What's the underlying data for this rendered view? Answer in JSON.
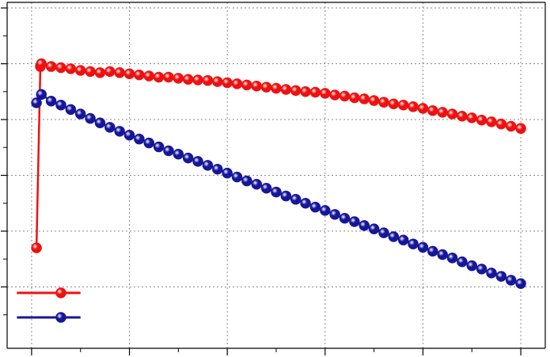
{
  "chart_data": {
    "type": "line",
    "title": "",
    "xlabel": "",
    "ylabel": "",
    "xlim": [
      -2.5,
      52.5
    ],
    "ylim": [
      -0.1,
      6.1
    ],
    "x_major_ticks": [
      0,
      10,
      20,
      30,
      40,
      50
    ],
    "x_minor_ticks": [
      5,
      15,
      25,
      35,
      45
    ],
    "y_major_ticks": [
      1,
      2,
      3,
      4,
      5,
      6
    ],
    "y_minor_ticks": [
      0.5,
      1.5,
      2.5,
      3.5,
      4.5,
      5.5
    ],
    "grid": true,
    "legend": "bottom-left",
    "series": [
      {
        "color": "#ee1111",
        "points": [
          [
            0.5,
            1.7
          ],
          [
            0.9,
            4.95
          ],
          [
            1,
            5.0
          ],
          [
            2,
            4.95
          ],
          [
            3,
            4.93
          ],
          [
            4,
            4.91
          ],
          [
            5,
            4.88
          ],
          [
            6,
            4.86
          ],
          [
            7,
            4.84
          ],
          [
            8,
            4.86
          ],
          [
            9,
            4.84
          ],
          [
            10,
            4.82
          ],
          [
            11,
            4.8
          ],
          [
            12,
            4.78
          ],
          [
            13,
            4.76
          ],
          [
            14,
            4.76
          ],
          [
            15,
            4.74
          ],
          [
            16,
            4.72
          ],
          [
            17,
            4.71
          ],
          [
            18,
            4.7
          ],
          [
            19,
            4.68
          ],
          [
            20,
            4.66
          ],
          [
            21,
            4.64
          ],
          [
            22,
            4.62
          ],
          [
            23,
            4.6
          ],
          [
            24,
            4.58
          ],
          [
            25,
            4.56
          ],
          [
            26,
            4.54
          ],
          [
            27,
            4.52
          ],
          [
            28,
            4.5
          ],
          [
            29,
            4.49
          ],
          [
            30,
            4.47
          ],
          [
            31,
            4.44
          ],
          [
            32,
            4.42
          ],
          [
            33,
            4.39
          ],
          [
            34,
            4.37
          ],
          [
            35,
            4.34
          ],
          [
            36,
            4.31
          ],
          [
            37,
            4.28
          ],
          [
            38,
            4.26
          ],
          [
            39,
            4.23
          ],
          [
            40,
            4.2
          ],
          [
            41,
            4.16
          ],
          [
            42,
            4.13
          ],
          [
            43,
            4.1
          ],
          [
            44,
            4.06
          ],
          [
            45,
            4.03
          ],
          [
            46,
            3.99
          ],
          [
            47,
            3.96
          ],
          [
            48,
            3.92
          ],
          [
            49,
            3.88
          ],
          [
            50,
            3.84
          ]
        ]
      },
      {
        "color": "#16169a",
        "points": [
          [
            0.5,
            4.3
          ],
          [
            1,
            4.45
          ],
          [
            2,
            4.33
          ],
          [
            3,
            4.26
          ],
          [
            4,
            4.18
          ],
          [
            5,
            4.1
          ],
          [
            6,
            4.02
          ],
          [
            7,
            3.94
          ],
          [
            8,
            3.86
          ],
          [
            9,
            3.79
          ],
          [
            10,
            3.72
          ],
          [
            11,
            3.65
          ],
          [
            12,
            3.58
          ],
          [
            13,
            3.51
          ],
          [
            14,
            3.44
          ],
          [
            15,
            3.38
          ],
          [
            16,
            3.31
          ],
          [
            17,
            3.25
          ],
          [
            18,
            3.18
          ],
          [
            19,
            3.11
          ],
          [
            20,
            3.04
          ],
          [
            21,
            2.97
          ],
          [
            22,
            2.9
          ],
          [
            23,
            2.84
          ],
          [
            24,
            2.77
          ],
          [
            25,
            2.7
          ],
          [
            26,
            2.63
          ],
          [
            27,
            2.57
          ],
          [
            28,
            2.5
          ],
          [
            29,
            2.43
          ],
          [
            30,
            2.37
          ],
          [
            31,
            2.3
          ],
          [
            32,
            2.23
          ],
          [
            33,
            2.17
          ],
          [
            34,
            2.1
          ],
          [
            35,
            2.04
          ],
          [
            36,
            1.97
          ],
          [
            37,
            1.9
          ],
          [
            38,
            1.84
          ],
          [
            39,
            1.77
          ],
          [
            40,
            1.71
          ],
          [
            41,
            1.64
          ],
          [
            42,
            1.58
          ],
          [
            43,
            1.52
          ],
          [
            44,
            1.45
          ],
          [
            45,
            1.38
          ],
          [
            46,
            1.32
          ],
          [
            47,
            1.25
          ],
          [
            48,
            1.19
          ],
          [
            49,
            1.12
          ],
          [
            50,
            1.06
          ]
        ]
      }
    ]
  }
}
